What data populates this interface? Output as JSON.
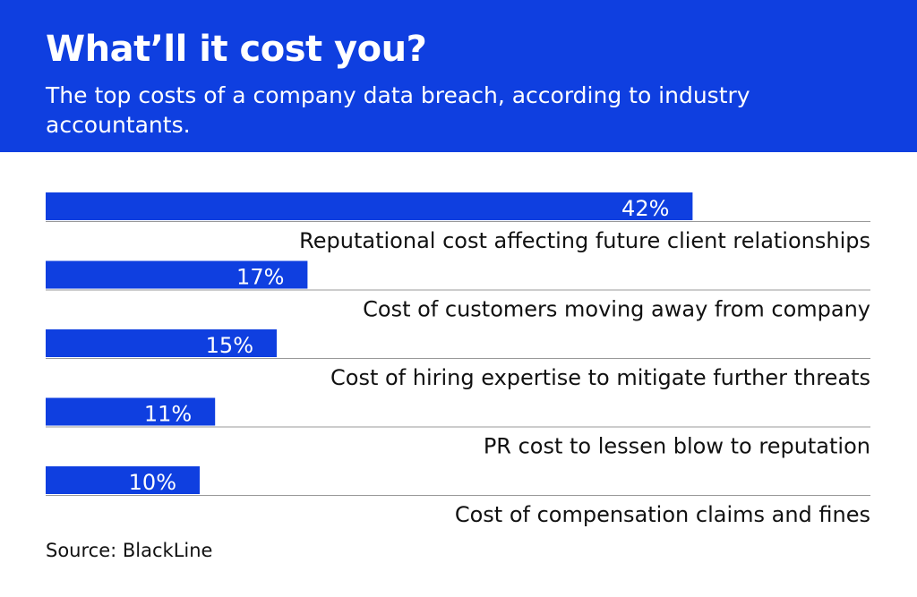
{
  "chart_data": {
    "type": "bar",
    "title": "What’ll it cost you?",
    "subtitle": "The top costs of a company data breach, according to industry accountants.",
    "categories": [
      "Reputational cost affecting future client relationships",
      "Cost of customers moving away from company",
      "Cost of hiring expertise to mitigate further threats",
      "PR cost to lessen blow to reputation",
      "Cost of compensation claims and fines"
    ],
    "values": [
      42,
      17,
      15,
      11,
      10
    ],
    "value_labels": [
      "42%",
      "17%",
      "15%",
      "11%",
      "10%"
    ],
    "color": "#0f3fe0",
    "source": "Source: BlackLine"
  }
}
